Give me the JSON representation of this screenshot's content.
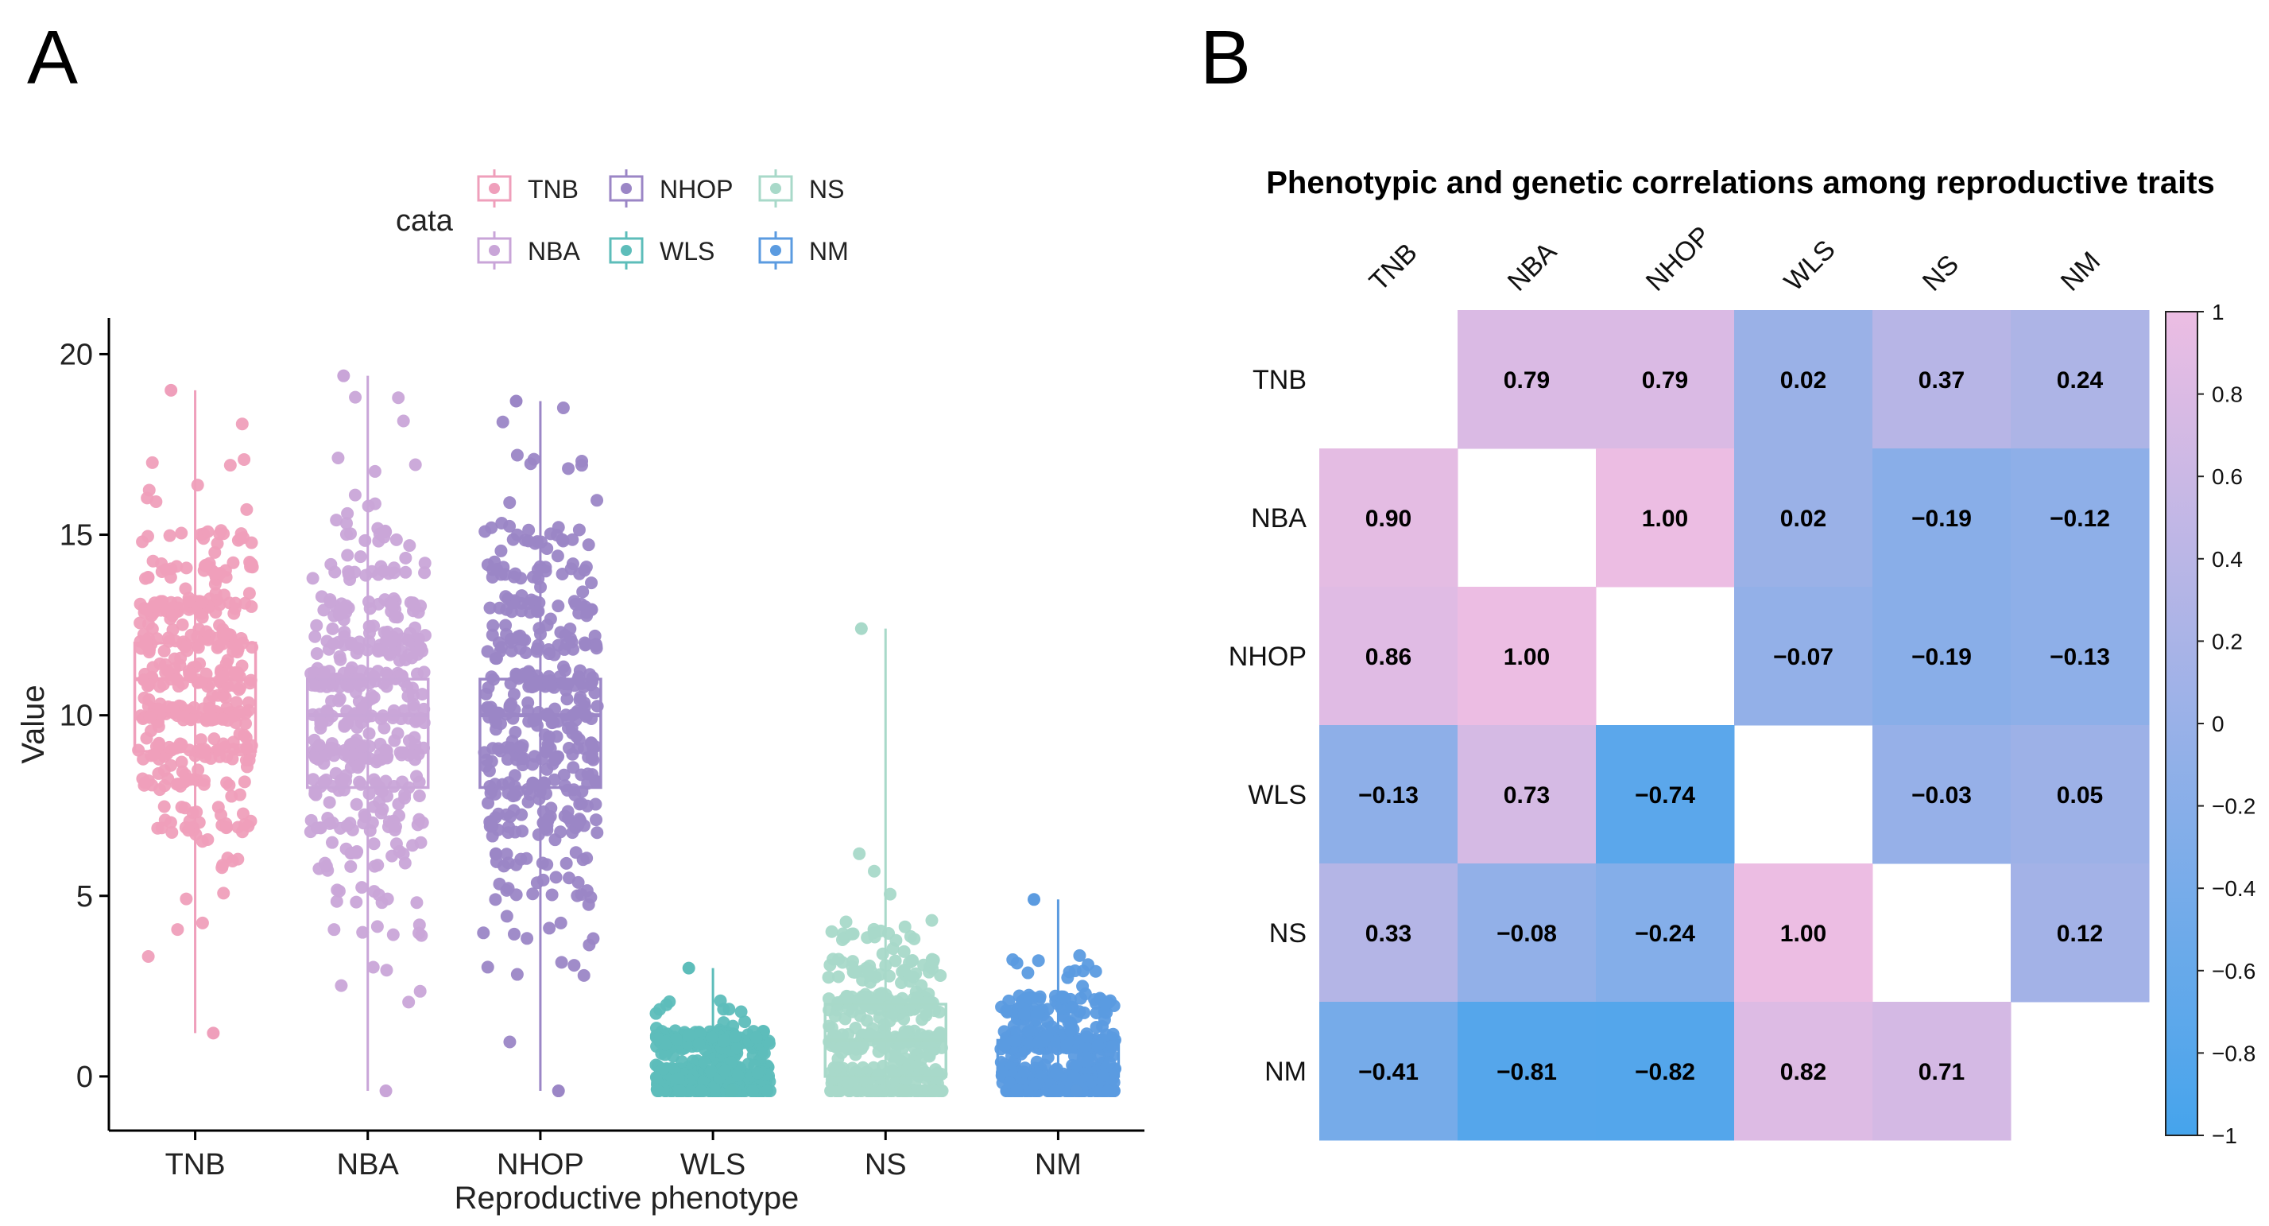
{
  "figure": {
    "panel_a_label": "A",
    "panel_b_label": "B"
  },
  "chart_data": [
    {
      "type": "box",
      "legend_title": "cata",
      "xlabel": "Reproductive phenotype",
      "ylabel": "Value",
      "ylim": [
        -1.5,
        21
      ],
      "yticks": [
        0,
        5,
        10,
        15,
        20
      ],
      "categories": [
        "TNB",
        "NBA",
        "NHOP",
        "WLS",
        "NS",
        "NM"
      ],
      "colors": [
        "#ef9fbb",
        "#c9a5d8",
        "#9b86c6",
        "#5dbdba",
        "#a8d9c9",
        "#5b9be0"
      ],
      "boxes": [
        {
          "name": "TNB",
          "q1": 9,
          "median": 11,
          "q3": 12,
          "whisker_low": 1.2,
          "whisker_high": 19
        },
        {
          "name": "NBA",
          "q1": 8,
          "median": 10,
          "q3": 11,
          "whisker_low": -0.4,
          "whisker_high": 19.4
        },
        {
          "name": "NHOP",
          "q1": 8,
          "median": 10,
          "q3": 11,
          "whisker_low": -0.4,
          "whisker_high": 18.7
        },
        {
          "name": "WLS",
          "q1": 0,
          "median": 0,
          "q3": 0,
          "whisker_low": -0.4,
          "whisker_high": 3
        },
        {
          "name": "NS",
          "q1": 0,
          "median": 1,
          "q3": 2,
          "whisker_low": -0.4,
          "whisker_high": 12.4
        },
        {
          "name": "NM",
          "q1": 0,
          "median": 0,
          "q3": 1,
          "whisker_low": -0.4,
          "whisker_high": 4.9
        }
      ],
      "jitter_ranges": [
        {
          "name": "TNB",
          "min": 1.2,
          "max": 19,
          "center": 11,
          "spread": 2.4,
          "n": 420
        },
        {
          "name": "NBA",
          "min": -0.4,
          "max": 19.4,
          "center": 10,
          "spread": 2.8,
          "n": 420
        },
        {
          "name": "NHOP",
          "min": -0.4,
          "max": 18.7,
          "center": 10,
          "spread": 3.0,
          "n": 420
        },
        {
          "name": "WLS",
          "min": -0.4,
          "max": 3.0,
          "center": 0.2,
          "spread": 0.7,
          "n": 420
        },
        {
          "name": "NS",
          "min": -0.4,
          "max": 12.4,
          "center": 1.0,
          "spread": 1.6,
          "n": 420
        },
        {
          "name": "NM",
          "min": -0.4,
          "max": 4.9,
          "center": 0.5,
          "spread": 1.0,
          "n": 420
        }
      ]
    },
    {
      "type": "heatmap",
      "title": "Phenotypic and genetic correlations among reproductive traits",
      "labels": [
        "TNB",
        "NBA",
        "NHOP",
        "WLS",
        "NS",
        "NM"
      ],
      "matrix": [
        [
          null,
          0.79,
          0.79,
          0.02,
          0.37,
          0.24
        ],
        [
          0.9,
          null,
          1.0,
          0.02,
          -0.19,
          -0.12
        ],
        [
          0.86,
          1.0,
          null,
          -0.07,
          -0.19,
          -0.13
        ],
        [
          -0.13,
          0.73,
          -0.74,
          null,
          -0.03,
          0.05
        ],
        [
          0.33,
          -0.08,
          -0.24,
          1.0,
          null,
          0.12
        ],
        [
          -0.41,
          -0.81,
          -0.82,
          0.82,
          0.71,
          null
        ]
      ],
      "value_labels": [
        [
          "",
          "0.79",
          "0.79",
          "0.02",
          "0.37",
          "0.24"
        ],
        [
          "0.90",
          "",
          "1.00",
          "0.02",
          "−0.19",
          "−0.12"
        ],
        [
          "0.86",
          "1.00",
          "",
          "−0.07",
          "−0.19",
          "−0.13"
        ],
        [
          "−0.13",
          "0.73",
          "−0.74",
          "",
          "−0.03",
          "0.05"
        ],
        [
          "0.33",
          "−0.08",
          "−0.24",
          "1.00",
          "",
          "0.12"
        ],
        [
          "−0.41",
          "−0.81",
          "−0.82",
          "0.82",
          "0.71",
          ""
        ]
      ],
      "colorbar": {
        "range": [
          -1,
          1
        ],
        "ticks": [
          1,
          0.8,
          0.6,
          0.4,
          0.2,
          0,
          -0.2,
          -0.4,
          -0.6,
          -0.8,
          -1
        ],
        "tick_labels": [
          "1",
          "0.8",
          "0.6",
          "0.4",
          "0.2",
          "0",
          "−0.2",
          "−0.4",
          "−0.6",
          "−0.8",
          "−1"
        ],
        "color_low": "#45a4ec",
        "color_high": "#ecbde3"
      }
    }
  ]
}
